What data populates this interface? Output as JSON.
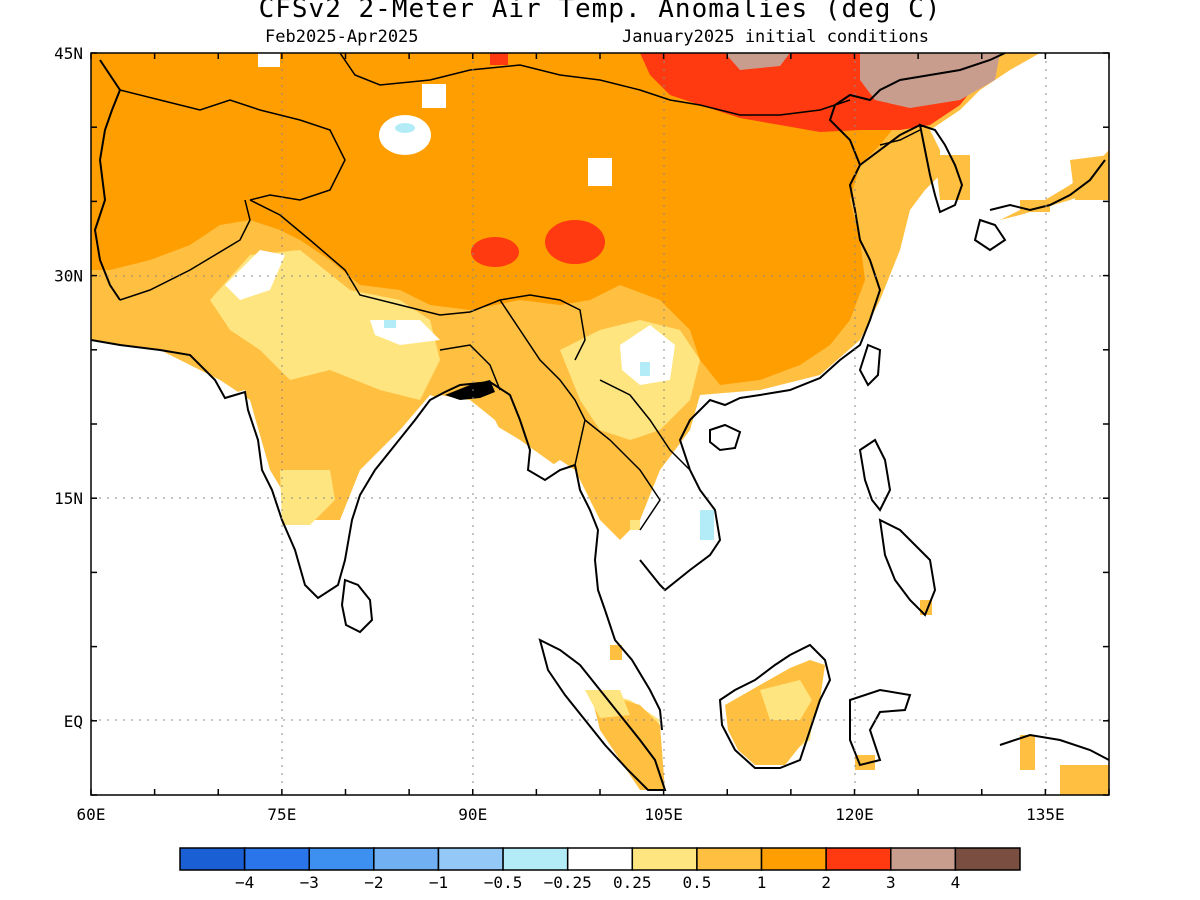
{
  "title": "CFSv2 2-Meter Air Temp. Anomalies (deg C)",
  "subtitle_left": "Feb2025-Apr2025",
  "subtitle_right": "January2025 initial conditions",
  "map": {
    "lon_range": [
      60,
      140
    ],
    "lat_range": [
      -5,
      45
    ],
    "lat_ticks": [
      "45N",
      "30N",
      "15N",
      "EQ"
    ],
    "lon_ticks": [
      "60E",
      "75E",
      "90E",
      "105E",
      "120E",
      "135E"
    ],
    "grid": true
  },
  "colorbar": {
    "colors": [
      "#1a5fd4",
      "#2a75ea",
      "#3d8ff0",
      "#72b0f4",
      "#93c8f7",
      "#b3ecf7",
      "#ffffff",
      "#ffe57f",
      "#ffbf40",
      "#ff9e00",
      "#ff3a10",
      "#c89d8e",
      "#7a4e40"
    ],
    "labels": [
      "-4",
      "-3",
      "-2",
      "-1",
      "-0.5",
      "-0.25",
      "0.25",
      "0.5",
      "1",
      "2",
      "3",
      "4"
    ]
  },
  "colors": {
    "land_outline": "#000000",
    "grid": "#8a8a8a"
  }
}
